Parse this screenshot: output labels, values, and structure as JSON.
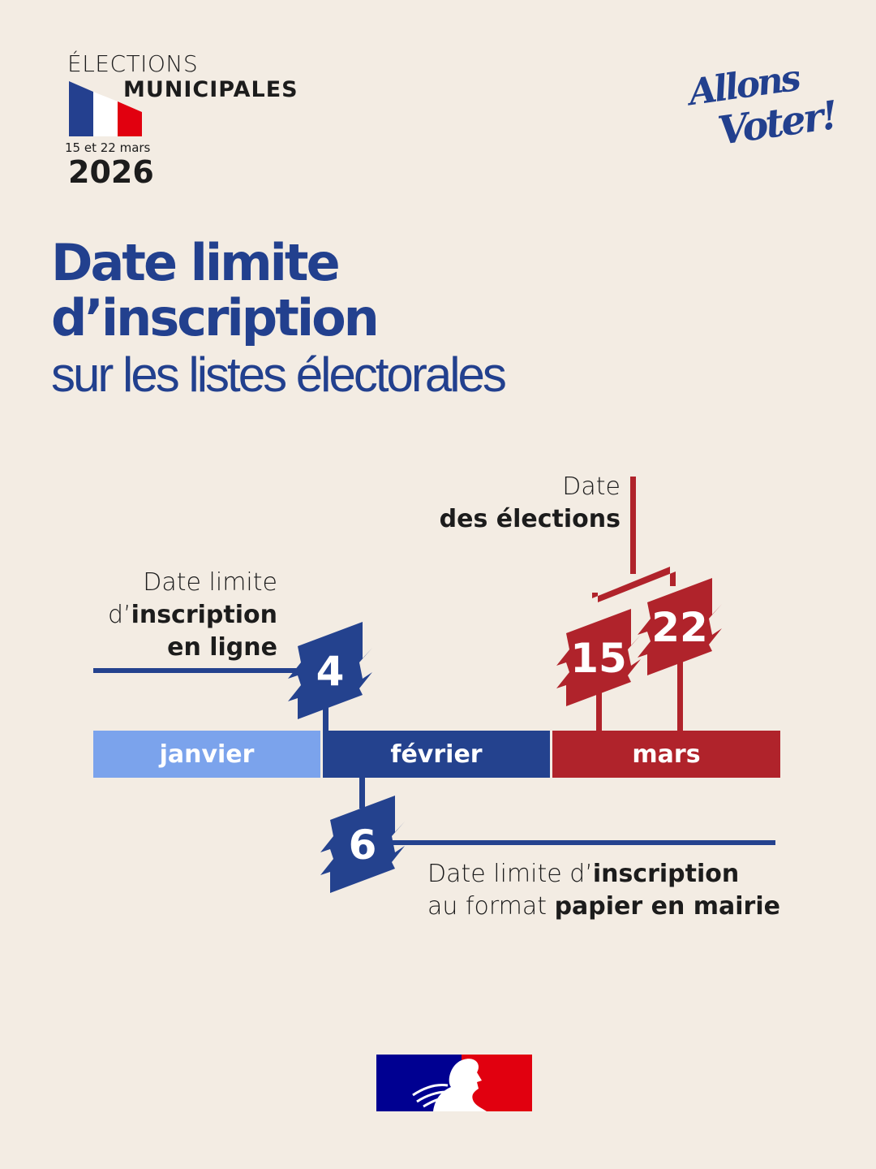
{
  "logo": {
    "line1": "ÉLECTIONS",
    "line2": "MUNICIPALES",
    "dates": "15 et 22 mars",
    "year": "2026",
    "flag_colors": [
      "#24408f",
      "#ffffff",
      "#e1000f"
    ]
  },
  "slogan": {
    "line1": "Allons",
    "line2": "Voter!"
  },
  "title": {
    "line1": "Date limite",
    "line2": "d’inscription",
    "line3": "sur les listes électorales"
  },
  "timeline": {
    "months": [
      {
        "label": "janvier",
        "color": "#7ba3ec"
      },
      {
        "label": "février",
        "color": "#24428e"
      },
      {
        "label": "mars",
        "color": "#b0232b"
      }
    ],
    "events": [
      {
        "day": "4",
        "month": "février",
        "color": "#24428e",
        "label": {
          "l1": "Date limite",
          "l2_pre": "d’",
          "l2_bold": "inscription",
          "l3_bold": "en ligne"
        }
      },
      {
        "day": "6",
        "month": "février",
        "color": "#24428e",
        "label": {
          "l1_pre": "Date limite d’",
          "l1_bold": "inscription",
          "l2_pre": "au format ",
          "l2_bold": "papier en mairie"
        }
      },
      {
        "day": "15",
        "month": "mars",
        "color": "#b0232b"
      },
      {
        "day": "22",
        "month": "mars",
        "color": "#b0232b"
      }
    ],
    "elections_label": {
      "l1": "Date",
      "l2_bold": "des élections"
    }
  },
  "footer": {
    "emblem_colors": [
      "#000091",
      "#ffffff",
      "#e1000f"
    ]
  }
}
